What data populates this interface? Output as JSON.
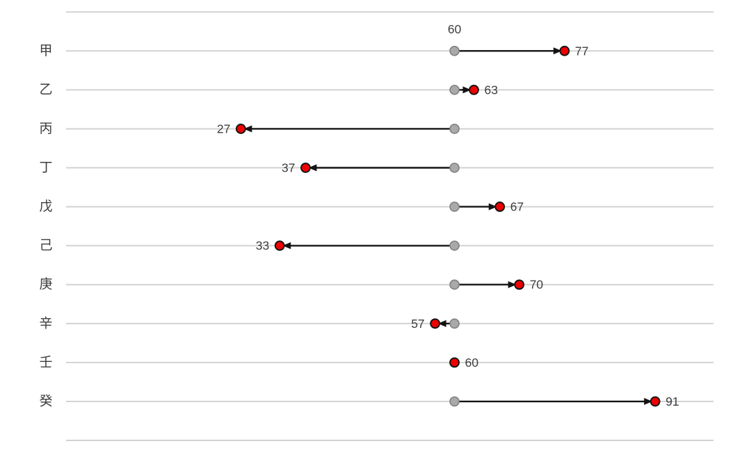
{
  "chart_data": {
    "type": "dumbbell",
    "title": "",
    "categories": [
      "甲",
      "乙",
      "丙",
      "丁",
      "戊",
      "己",
      "庚",
      "辛",
      "壬",
      "癸"
    ],
    "baseline": 60,
    "baseline_annotation": "60",
    "values": [
      77,
      63,
      27,
      37,
      67,
      33,
      70,
      57,
      60,
      91
    ],
    "value_labels": [
      "77",
      "63",
      "27",
      "37",
      "67",
      "33",
      "70",
      "57",
      "60",
      "91"
    ],
    "xlim": [
      0,
      100
    ],
    "grid": true,
    "legend_position": "none",
    "xlabel": "",
    "ylabel": "",
    "colors": {
      "background": "#ffffff",
      "grid": "#d2d2d2",
      "baseline_dot_fill": "#a9a9a9",
      "baseline_dot_stroke": "#808080",
      "value_dot_fill": "#ee0000",
      "value_dot_stroke": "#141414",
      "arrow": "#141414",
      "text": "#3d3d3d"
    }
  }
}
